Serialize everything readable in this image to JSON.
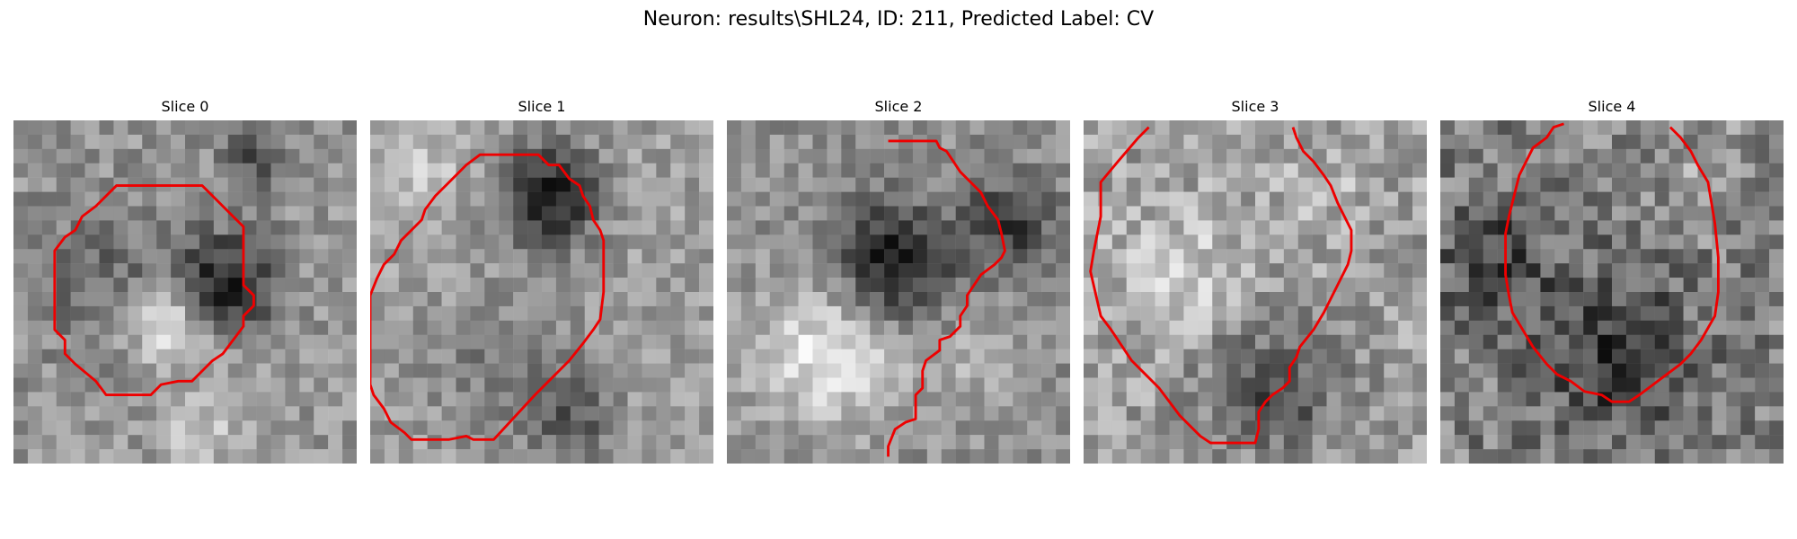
{
  "figure": {
    "title": "Neuron: results\\SHL24, ID: 211, Predicted Label: CV"
  },
  "panels": [
    {
      "title": "Slice 0"
    },
    {
      "title": "Slice 1"
    },
    {
      "title": "Slice 2"
    },
    {
      "title": "Slice 3"
    },
    {
      "title": "Slice 4"
    }
  ],
  "style": {
    "contour_color": "#ee0000",
    "colormap": "grayscale",
    "grid_cells": 24
  }
}
